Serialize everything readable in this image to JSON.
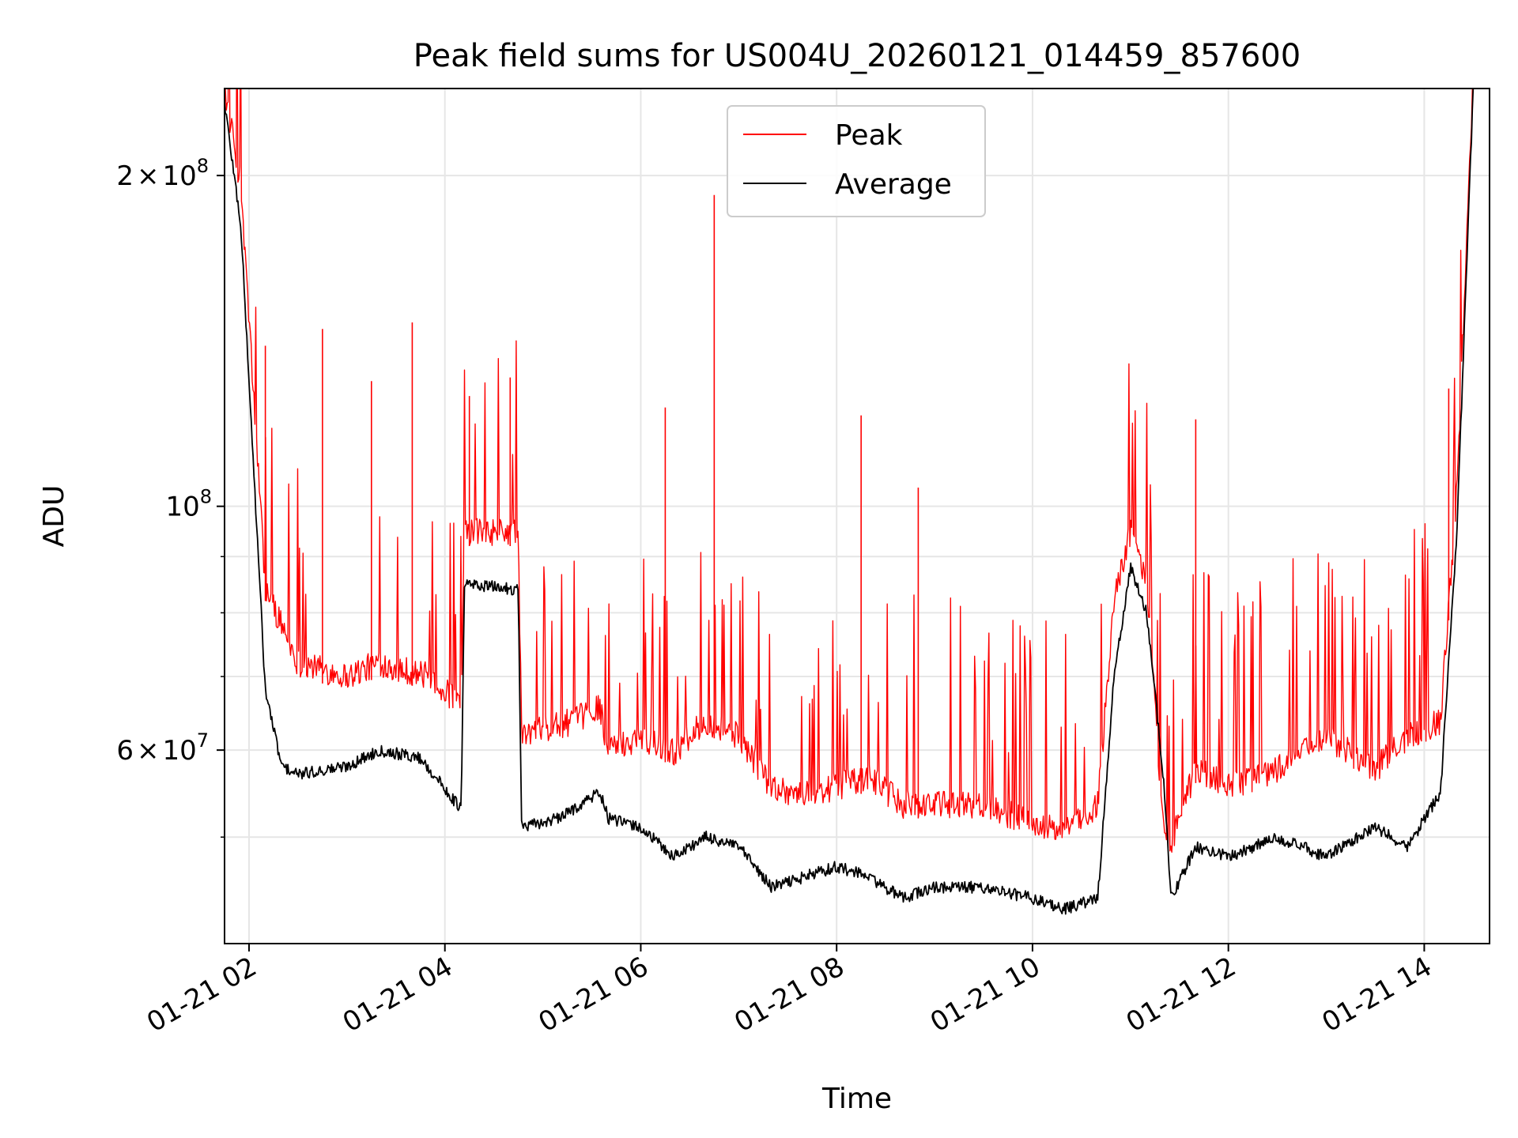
{
  "chart_data": {
    "type": "line",
    "title": "Peak field sums for US004U_20260121_014459_857600",
    "xlabel": "Time",
    "ylabel": "ADU",
    "y_scale": "log",
    "grid": true,
    "legend_position": "top-center",
    "xlim": [
      "2026-01-21 01:45",
      "2026-01-21 14:40"
    ],
    "ylim": [
      40000000,
      240000000
    ],
    "x_ticks": [
      "01-21 02",
      "01-21 04",
      "01-21 06",
      "01-21 08",
      "01-21 10",
      "01-21 12",
      "01-21 14"
    ],
    "y_ticks": [
      {
        "value": 200000000,
        "label_base": "2",
        "label_times": "×",
        "label_pow": "10",
        "label_exp": "8"
      },
      {
        "value": 100000000,
        "label_base": "",
        "label_times": "",
        "label_pow": "10",
        "label_exp": "8"
      },
      {
        "value": 60000000,
        "label_base": "6",
        "label_times": "×",
        "label_pow": "10",
        "label_exp": "7"
      }
    ],
    "series": [
      {
        "name": "Peak",
        "color": "#ff0000",
        "x": [
          "2026-01-21 01:45",
          "2026-01-21 01:55",
          "2026-01-21 02:10",
          "2026-01-21 02:30",
          "2026-01-21 03:00",
          "2026-01-21 03:20",
          "2026-01-21 03:50",
          "2026-01-21 04:10",
          "2026-01-21 04:12",
          "2026-01-21 04:45",
          "2026-01-21 04:47",
          "2026-01-21 05:20",
          "2026-01-21 05:35",
          "2026-01-21 05:40",
          "2026-01-21 06:00",
          "2026-01-21 06:20",
          "2026-01-21 06:40",
          "2026-01-21 07:00",
          "2026-01-21 07:20",
          "2026-01-21 07:40",
          "2026-01-21 08:00",
          "2026-01-21 08:20",
          "2026-01-21 08:40",
          "2026-01-21 09:00",
          "2026-01-21 09:30",
          "2026-01-21 10:00",
          "2026-01-21 10:20",
          "2026-01-21 10:40",
          "2026-01-21 10:50",
          "2026-01-21 11:00",
          "2026-01-21 11:10",
          "2026-01-21 11:20",
          "2026-01-21 11:25",
          "2026-01-21 11:40",
          "2026-01-21 12:00",
          "2026-01-21 12:30",
          "2026-01-21 13:00",
          "2026-01-21 13:30",
          "2026-01-21 13:50",
          "2026-01-21 14:10",
          "2026-01-21 14:20",
          "2026-01-21 14:30"
        ],
        "values": [
          233000000,
          190000000,
          82000000,
          70000000,
          68000000,
          70000000,
          68000000,
          64000000,
          92000000,
          92000000,
          60000000,
          62000000,
          64000000,
          58000000,
          60000000,
          58000000,
          62000000,
          60000000,
          54000000,
          53000000,
          54000000,
          55000000,
          52000000,
          52000000,
          52000000,
          50000000,
          49000000,
          52000000,
          80000000,
          92000000,
          83000000,
          50000000,
          48000000,
          56000000,
          54000000,
          56000000,
          60000000,
          56000000,
          60000000,
          62000000,
          100000000,
          240000000
        ],
        "spikes": [
          {
            "x": "2026-01-21 02:10",
            "y": 140000000
          },
          {
            "x": "2026-01-21 02:45",
            "y": 145000000
          },
          {
            "x": "2026-01-21 03:15",
            "y": 130000000
          },
          {
            "x": "2026-01-21 03:40",
            "y": 147000000
          },
          {
            "x": "2026-01-21 04:15",
            "y": 126000000
          },
          {
            "x": "2026-01-21 04:40",
            "y": 131000000
          },
          {
            "x": "2026-01-21 06:15",
            "y": 123000000
          },
          {
            "x": "2026-01-21 06:45",
            "y": 192000000
          },
          {
            "x": "2026-01-21 08:15",
            "y": 121000000
          },
          {
            "x": "2026-01-21 08:50",
            "y": 104000000
          },
          {
            "x": "2026-01-21 11:40",
            "y": 120000000
          },
          {
            "x": "2026-01-21 14:15",
            "y": 128000000
          }
        ]
      },
      {
        "name": "Average",
        "color": "#000000",
        "x": [
          "2026-01-21 01:45",
          "2026-01-21 01:55",
          "2026-01-21 02:10",
          "2026-01-21 02:20",
          "2026-01-21 02:30",
          "2026-01-21 03:00",
          "2026-01-21 03:20",
          "2026-01-21 03:45",
          "2026-01-21 04:10",
          "2026-01-21 04:12",
          "2026-01-21 04:45",
          "2026-01-21 04:47",
          "2026-01-21 05:10",
          "2026-01-21 05:35",
          "2026-01-21 05:40",
          "2026-01-21 06:00",
          "2026-01-21 06:20",
          "2026-01-21 06:40",
          "2026-01-21 07:00",
          "2026-01-21 07:20",
          "2026-01-21 07:40",
          "2026-01-21 08:00",
          "2026-01-21 08:20",
          "2026-01-21 08:40",
          "2026-01-21 09:00",
          "2026-01-21 09:30",
          "2026-01-21 10:00",
          "2026-01-21 10:20",
          "2026-01-21 10:40",
          "2026-01-21 10:50",
          "2026-01-21 11:00",
          "2026-01-21 11:10",
          "2026-01-21 11:20",
          "2026-01-21 11:25",
          "2026-01-21 11:40",
          "2026-01-21 12:00",
          "2026-01-21 12:30",
          "2026-01-21 13:00",
          "2026-01-21 13:30",
          "2026-01-21 13:50",
          "2026-01-21 14:10",
          "2026-01-21 14:20",
          "2026-01-21 14:30"
        ],
        "values": [
          233000000,
          180000000,
          68000000,
          58000000,
          57000000,
          58000000,
          60000000,
          59000000,
          53000000,
          85000000,
          84000000,
          51000000,
          52000000,
          55000000,
          52000000,
          51000000,
          48000000,
          50000000,
          49000000,
          45000000,
          46000000,
          47000000,
          46000000,
          44000000,
          45000000,
          45000000,
          44000000,
          43000000,
          44000000,
          70000000,
          88000000,
          80000000,
          57000000,
          44000000,
          49000000,
          48000000,
          50000000,
          48000000,
          51000000,
          49000000,
          55000000,
          95000000,
          240000000
        ]
      }
    ]
  }
}
